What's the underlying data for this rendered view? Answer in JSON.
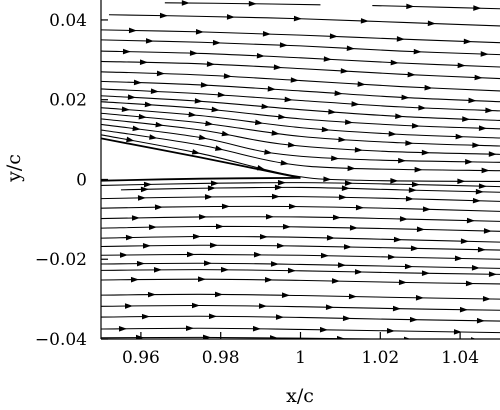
{
  "chart_data": {
    "type": "streamline",
    "xlabel": "x/c",
    "ylabel": "y/c",
    "xlim": [
      0.95,
      1.05
    ],
    "ylim": [
      -0.04,
      0.045
    ],
    "x_ticks": [
      {
        "value": 0.96,
        "label": "0.96"
      },
      {
        "value": 0.98,
        "label": "0.98"
      },
      {
        "value": 1.0,
        "label": "1"
      },
      {
        "value": 1.02,
        "label": "1.02"
      },
      {
        "value": 1.04,
        "label": "1.04"
      }
    ],
    "y_ticks": [
      {
        "value": 0.04,
        "label": "0.04"
      },
      {
        "value": 0.02,
        "label": "0.02"
      },
      {
        "value": 0.0,
        "label": "0"
      },
      {
        "value": -0.02,
        "label": "−0.02"
      },
      {
        "value": -0.04,
        "label": "−0.04"
      }
    ],
    "airfoil_trailing_edge": {
      "upper": [
        [
          0.95,
          0.0103
        ],
        [
          0.975,
          0.0055
        ],
        [
          1.0,
          0.0004
        ]
      ],
      "lower": [
        [
          0.95,
          -0.0003
        ],
        [
          0.975,
          0.0002
        ],
        [
          1.0,
          0.0004
        ]
      ]
    },
    "streamlines": [
      [
        [
          0.966,
          0.0443
        ],
        [
          0.985,
          0.0441
        ],
        [
          1.005,
          0.0438
        ]
      ],
      [
        [
          1.018,
          0.0436
        ],
        [
          1.035,
          0.0432
        ],
        [
          1.05,
          0.0428
        ]
      ],
      [
        [
          0.952,
          0.0413
        ],
        [
          0.975,
          0.0409
        ],
        [
          1.0,
          0.0403
        ],
        [
          1.025,
          0.0394
        ],
        [
          1.05,
          0.0385
        ]
      ],
      [
        [
          0.95,
          0.0375
        ],
        [
          0.975,
          0.037
        ],
        [
          1.0,
          0.0362
        ],
        [
          1.025,
          0.0352
        ],
        [
          1.05,
          0.0343
        ]
      ],
      [
        [
          0.95,
          0.035
        ],
        [
          0.975,
          0.0344
        ],
        [
          1.0,
          0.0335
        ],
        [
          1.025,
          0.0322
        ],
        [
          1.05,
          0.0313
        ]
      ],
      [
        [
          0.95,
          0.0322
        ],
        [
          0.975,
          0.0316
        ],
        [
          1.0,
          0.0305
        ],
        [
          1.025,
          0.0292
        ],
        [
          1.05,
          0.0282
        ]
      ],
      [
        [
          0.95,
          0.0296
        ],
        [
          0.975,
          0.029
        ],
        [
          1.0,
          0.0278
        ],
        [
          1.025,
          0.0264
        ],
        [
          1.05,
          0.0253
        ]
      ],
      [
        [
          0.95,
          0.027
        ],
        [
          0.975,
          0.0262
        ],
        [
          1.0,
          0.0248
        ],
        [
          1.025,
          0.0233
        ],
        [
          1.05,
          0.0222
        ]
      ],
      [
        [
          0.95,
          0.0246
        ],
        [
          0.975,
          0.0237
        ],
        [
          1.0,
          0.0222
        ],
        [
          1.025,
          0.0206
        ],
        [
          1.05,
          0.0195
        ]
      ],
      [
        [
          0.95,
          0.0227
        ],
        [
          0.975,
          0.0215
        ],
        [
          1.0,
          0.0198
        ],
        [
          1.025,
          0.0182
        ],
        [
          1.05,
          0.0172
        ]
      ],
      [
        [
          0.95,
          0.021
        ],
        [
          0.975,
          0.0196
        ],
        [
          1.0,
          0.0175
        ],
        [
          1.025,
          0.0158
        ],
        [
          1.05,
          0.0148
        ]
      ],
      [
        [
          0.95,
          0.0195
        ],
        [
          0.975,
          0.0178
        ],
        [
          1.0,
          0.0152
        ],
        [
          1.025,
          0.0136
        ],
        [
          1.05,
          0.0127
        ]
      ],
      [
        [
          0.95,
          0.018
        ],
        [
          0.975,
          0.016
        ],
        [
          1.0,
          0.013
        ],
        [
          1.025,
          0.0113
        ],
        [
          1.05,
          0.0104
        ]
      ],
      [
        [
          0.95,
          0.0166
        ],
        [
          0.975,
          0.0142
        ],
        [
          1.0,
          0.0108
        ],
        [
          1.025,
          0.0092
        ],
        [
          1.05,
          0.0084
        ]
      ],
      [
        [
          0.95,
          0.0152
        ],
        [
          0.975,
          0.0124
        ],
        [
          0.995,
          0.0089
        ],
        [
          1.02,
          0.0071
        ],
        [
          1.05,
          0.0063
        ]
      ],
      [
        [
          0.95,
          0.0138
        ],
        [
          0.975,
          0.0105
        ],
        [
          0.993,
          0.0066
        ],
        [
          1.015,
          0.005
        ],
        [
          1.05,
          0.0043
        ]
      ],
      [
        [
          0.95,
          0.0124
        ],
        [
          0.975,
          0.0086
        ],
        [
          0.995,
          0.0042
        ],
        [
          1.012,
          0.0028
        ],
        [
          1.05,
          0.0022
        ]
      ],
      [
        [
          0.95,
          0.0112
        ],
        [
          0.975,
          0.0065
        ],
        [
          0.998,
          0.001
        ],
        [
          1.015,
          -0.0002
        ],
        [
          1.05,
          -0.0005
        ]
      ],
      [
        [
          0.95,
          -0.0015
        ],
        [
          0.975,
          -0.001
        ],
        [
          1.0,
          -0.0008
        ],
        [
          1.025,
          -0.0012
        ],
        [
          1.05,
          -0.0018
        ]
      ],
      [
        [
          0.955,
          -0.0026
        ],
        [
          0.975,
          -0.0022
        ],
        [
          1.0,
          -0.002
        ],
        [
          1.025,
          -0.0026
        ],
        [
          1.05,
          -0.0032
        ]
      ],
      [
        [
          0.95,
          -0.0048
        ],
        [
          0.975,
          -0.0044
        ],
        [
          1.0,
          -0.0043
        ],
        [
          1.025,
          -0.0048
        ],
        [
          1.05,
          -0.0055
        ]
      ],
      [
        [
          0.95,
          -0.0072
        ],
        [
          0.975,
          -0.0068
        ],
        [
          1.0,
          -0.0068
        ],
        [
          1.025,
          -0.0073
        ],
        [
          1.05,
          -0.008
        ]
      ],
      [
        [
          0.95,
          -0.0098
        ],
        [
          0.975,
          -0.0094
        ],
        [
          1.0,
          -0.0094
        ],
        [
          1.025,
          -0.0099
        ],
        [
          1.05,
          -0.0105
        ]
      ],
      [
        [
          0.95,
          -0.0122
        ],
        [
          0.975,
          -0.0118
        ],
        [
          1.0,
          -0.0119
        ],
        [
          1.025,
          -0.0124
        ],
        [
          1.05,
          -0.013
        ]
      ],
      [
        [
          0.95,
          -0.0147
        ],
        [
          0.975,
          -0.0143
        ],
        [
          1.0,
          -0.0145
        ],
        [
          1.025,
          -0.0151
        ],
        [
          1.05,
          -0.0157
        ]
      ],
      [
        [
          0.95,
          -0.0168
        ],
        [
          0.975,
          -0.0165
        ],
        [
          1.0,
          -0.0167
        ],
        [
          1.025,
          -0.0172
        ],
        [
          1.05,
          -0.0177
        ]
      ],
      [
        [
          0.95,
          -0.019
        ],
        [
          0.975,
          -0.0188
        ],
        [
          1.0,
          -0.019
        ],
        [
          1.025,
          -0.0195
        ],
        [
          1.05,
          -0.02
        ]
      ],
      [
        [
          0.95,
          -0.0212
        ],
        [
          0.975,
          -0.021
        ],
        [
          1.0,
          -0.0213
        ],
        [
          1.025,
          -0.0218
        ],
        [
          1.05,
          -0.0223
        ]
      ],
      [
        [
          0.95,
          -0.0228
        ],
        [
          0.975,
          -0.0226
        ],
        [
          1.0,
          -0.0229
        ],
        [
          1.025,
          -0.0234
        ],
        [
          1.05,
          -0.0238
        ]
      ],
      [
        [
          0.95,
          -0.0252
        ],
        [
          0.975,
          -0.025
        ],
        [
          1.0,
          -0.0253
        ],
        [
          1.025,
          -0.0258
        ],
        [
          1.05,
          -0.0262
        ]
      ],
      [
        [
          0.95,
          -0.029
        ],
        [
          0.975,
          -0.0288
        ],
        [
          1.0,
          -0.0291
        ],
        [
          1.025,
          -0.0296
        ],
        [
          1.05,
          -0.03
        ]
      ],
      [
        [
          0.95,
          -0.0318
        ],
        [
          0.975,
          -0.0316
        ],
        [
          1.0,
          -0.0319
        ],
        [
          1.025,
          -0.0324
        ],
        [
          1.05,
          -0.0328
        ]
      ],
      [
        [
          0.95,
          -0.0345
        ],
        [
          0.975,
          -0.0343
        ],
        [
          1.0,
          -0.0346
        ],
        [
          1.025,
          -0.0351
        ],
        [
          1.05,
          -0.0355
        ]
      ],
      [
        [
          0.95,
          -0.0375
        ],
        [
          0.975,
          -0.0373
        ],
        [
          1.0,
          -0.0376
        ],
        [
          1.025,
          -0.038
        ],
        [
          1.05,
          -0.0384
        ]
      ],
      [
        [
          0.95,
          -0.0397
        ],
        [
          0.975,
          -0.0396
        ],
        [
          1.0,
          -0.0398
        ],
        [
          1.025,
          -0.0401
        ],
        [
          1.05,
          -0.0403
        ]
      ]
    ]
  }
}
